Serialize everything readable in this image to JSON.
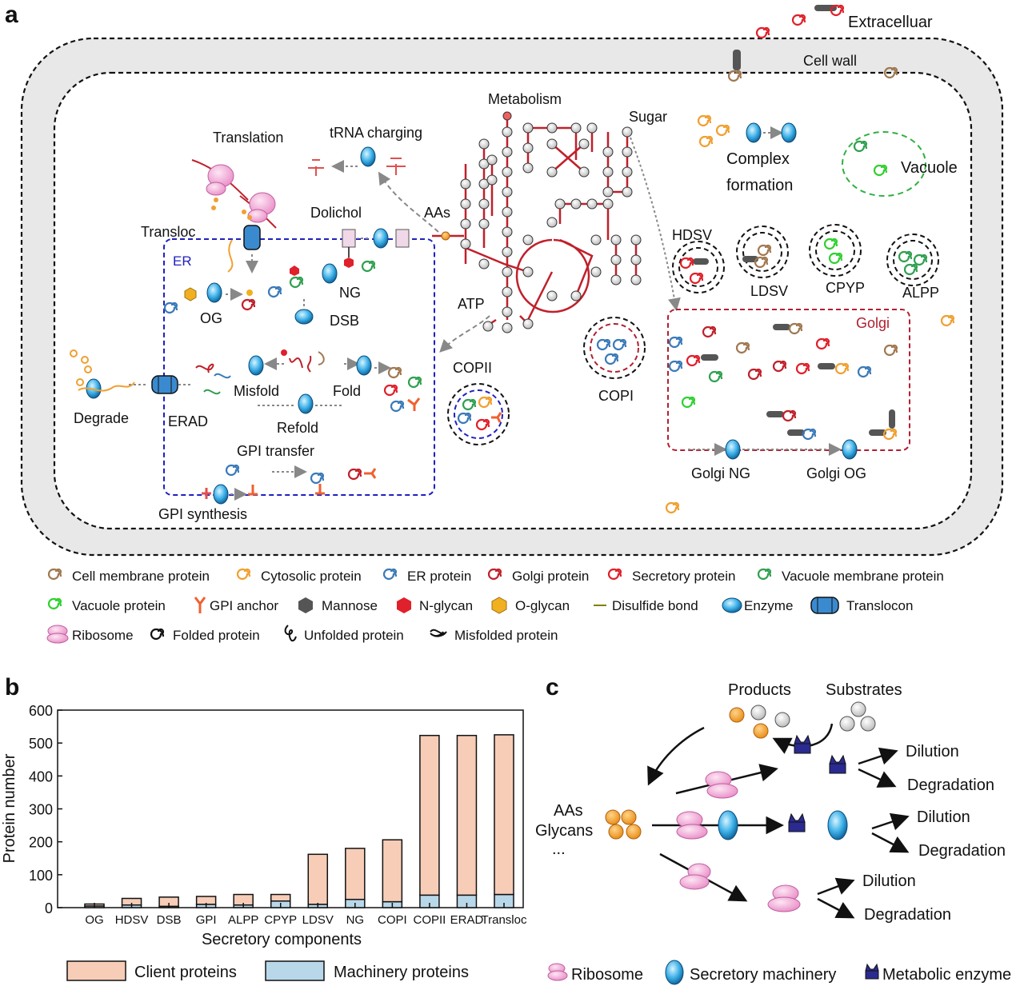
{
  "panel_a": {
    "letter": "a",
    "labels": {
      "extracellular": "Extracelluar",
      "cell_wall": "Cell wall",
      "metabolism": "Metabolism",
      "sugar": "Sugar",
      "translation": "Translation",
      "trna_charging": "tRNA charging",
      "aas": "AAs",
      "dolichol": "Dolichol",
      "transloc": "Transloc",
      "er": "ER",
      "ng": "NG",
      "og": "OG",
      "dsb": "DSB",
      "atp": "ATP",
      "misfold": "Misfold",
      "fold": "Fold",
      "refold": "Refold",
      "erad": "ERAD",
      "degrade": "Degrade",
      "gpi_transfer": "GPI transfer",
      "gpi_synthesis": "GPI synthesis",
      "copii": "COPII",
      "copi": "COPI",
      "complex": "Complex",
      "formation": "formation",
      "vacuole": "Vacuole",
      "hdsv": "HDSV",
      "ldsv": "LDSV",
      "cpyp": "CPYP",
      "alpp": "ALPP",
      "golgi": "Golgi",
      "golgi_ng": "Golgi NG",
      "golgi_og": "Golgi OG"
    },
    "legend": [
      [
        "Cell membrane protein",
        "Cytosolic protein",
        "ER protein",
        "Golgi protein",
        "Secretory protein",
        "Vacuole membrane protein"
      ],
      [
        "Vacuole protein",
        "GPI anchor",
        "Mannose",
        "N-glycan",
        "O-glycan",
        "Disulfide bond",
        "Enzyme",
        "Translocon"
      ],
      [
        "Ribosome",
        "Folded protein",
        "Unfolded protein",
        "Misfolded protein"
      ]
    ],
    "colors": {
      "cell_membrane": "#a07850",
      "cytosolic": "#f0a030",
      "er": "#3a7ab8",
      "golgi": "#b03040",
      "secretory": "#e0202a",
      "vacuole_membrane": "#30a050",
      "vacuole": "#30d030",
      "er_border": "#2020c0",
      "golgi_border": "#b02030",
      "metabolism": "#c0202a",
      "cell_wall_fill": "#e8e8e8"
    }
  },
  "panel_b": {
    "letter": "b",
    "legend_client": "Client proteins",
    "legend_machinery": "Machinery proteins"
  },
  "chart_data": {
    "type": "bar",
    "stacked": true,
    "title": "",
    "xlabel": "Secretory components",
    "ylabel": "Protein number",
    "ylim": [
      0,
      600
    ],
    "yticks": [
      0,
      100,
      200,
      300,
      400,
      500,
      600
    ],
    "categories": [
      "OG",
      "HDSV",
      "DSB",
      "GPI",
      "ALPP",
      "CPYP",
      "LDSV",
      "NG",
      "COPI",
      "COPII",
      "ERAD",
      "Transloc"
    ],
    "series": [
      {
        "name": "Machinery proteins",
        "color": "#b8d8ea",
        "values": [
          5,
          8,
          4,
          10,
          8,
          20,
          10,
          25,
          18,
          38,
          38,
          40
        ]
      },
      {
        "name": "Client proteins",
        "color": "#f7cdb8",
        "values": [
          6,
          20,
          28,
          24,
          32,
          20,
          152,
          155,
          188,
          485,
          485,
          485
        ]
      }
    ],
    "legend": "bottom"
  },
  "panel_c": {
    "letter": "c",
    "products": "Products",
    "substrates": "Substrates",
    "aas": "AAs",
    "glycans": "Glycans",
    "ellipsis": "...",
    "dilution": "Dilution",
    "degradation": "Degradation",
    "legend_ribosome": "Ribosome",
    "legend_machinery": "Secretory machinery",
    "legend_enzyme": "Metabolic enzyme"
  }
}
